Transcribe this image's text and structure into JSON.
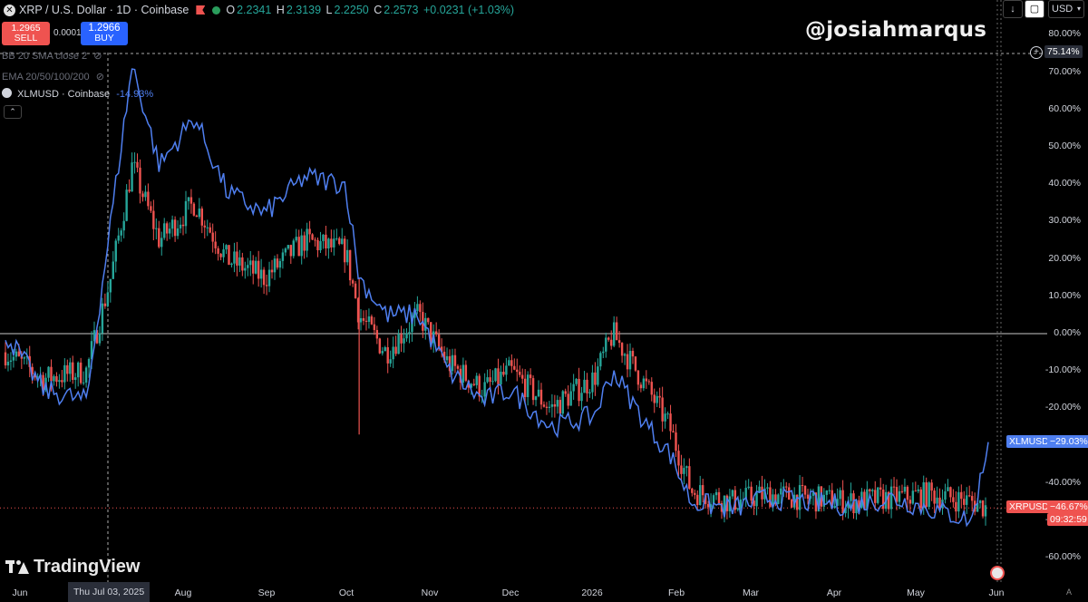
{
  "header": {
    "symbol": "XRP / U.S. Dollar · 1D · Coinbase",
    "o_key": "O",
    "o_val": "2.2341",
    "h_key": "H",
    "h_val": "2.3139",
    "l_key": "L",
    "l_val": "2.2250",
    "c_key": "C",
    "c_val": "2.2573",
    "change": "+0.0231 (+1.03%)"
  },
  "trade": {
    "sell_price": "1.2965",
    "sell_label": "SELL",
    "spread": "0.0001",
    "buy_price": "1.2966",
    "buy_label": "BUY"
  },
  "indicators": {
    "bb": "BB 20 SMA close 2",
    "ema": "EMA 20/50/100/200",
    "compare_symbol": "XLMUSD · Coinbase",
    "compare_value": "-14.93%"
  },
  "watermark": "@josiahmarqus",
  "currency": "USD",
  "brand": "TradingView",
  "crosshair": {
    "x_label": "Thu Jul 03, 2025",
    "y_label": "75.14%"
  },
  "price_tags": {
    "xlm_name": "XLMUSD",
    "xlm_value": "−29.03%",
    "xrp_name": "XRPUSD",
    "xrp_value": "−46.67%",
    "countdown": "09:32:59"
  },
  "colors": {
    "up": "#26a69a",
    "down": "#ef5350",
    "xlm_line": "#4f7ff0",
    "zero_line": "#c8c8c8",
    "background": "#000000"
  },
  "chart_data": {
    "type": "line",
    "title": "XRP / U.S. Dollar · 1D · Coinbase",
    "xlabel": "",
    "ylabel": "",
    "y_unit": "%",
    "ylim": [
      -60,
      80
    ],
    "y_ticks": [
      "80.00%",
      "70.00%",
      "60.00%",
      "50.00%",
      "40.00%",
      "30.00%",
      "20.00%",
      "10.00%",
      "0.00%",
      "-10.00%",
      "-20.00%",
      "-30.00%",
      "-40.00%",
      "-50.00%",
      "-60.00%"
    ],
    "x_ticks": [
      "Jun",
      "Aug",
      "Sep",
      "Oct",
      "Nov",
      "Dec",
      "2026",
      "Feb",
      "Mar",
      "Apr",
      "May",
      "Jun"
    ],
    "series": [
      {
        "name": "XRPUSD",
        "style": "candlestick",
        "x": [
          "2025-06-01",
          "2025-06-15",
          "2025-07-01",
          "2025-07-10",
          "2025-07-18",
          "2025-07-28",
          "2025-08-10",
          "2025-08-22",
          "2025-09-05",
          "2025-09-20",
          "2025-10-05",
          "2025-10-10",
          "2025-10-20",
          "2025-11-01",
          "2025-11-12",
          "2025-11-25",
          "2025-12-05",
          "2025-12-20",
          "2026-01-05",
          "2026-01-12",
          "2026-01-25",
          "2026-02-02",
          "2026-02-10",
          "2026-02-25",
          "2026-03-10",
          "2026-03-25",
          "2026-04-10",
          "2026-04-25",
          "2026-05-10",
          "2026-05-25",
          "2026-05-31"
        ],
        "values": [
          -5,
          -12,
          -10,
          15,
          45,
          25,
          35,
          20,
          15,
          25,
          22,
          5,
          -5,
          5,
          -8,
          -15,
          -10,
          -20,
          -12,
          0,
          -15,
          -25,
          -42,
          -45,
          -43,
          -44,
          -45,
          -44,
          -43,
          -45,
          -46.67
        ]
      },
      {
        "name": "XLMUSD",
        "style": "line",
        "x": [
          "2025-06-01",
          "2025-06-15",
          "2025-07-01",
          "2025-07-10",
          "2025-07-18",
          "2025-07-28",
          "2025-08-10",
          "2025-08-22",
          "2025-09-05",
          "2025-09-20",
          "2025-10-05",
          "2025-10-10",
          "2025-10-20",
          "2025-11-01",
          "2025-11-12",
          "2025-11-25",
          "2025-12-05",
          "2025-12-20",
          "2026-01-05",
          "2026-01-12",
          "2026-01-25",
          "2026-02-02",
          "2026-02-10",
          "2026-02-25",
          "2026-03-10",
          "2026-03-25",
          "2026-04-10",
          "2026-04-25",
          "2026-05-10",
          "2026-05-25",
          "2026-05-31"
        ],
        "values": [
          0,
          -15,
          -18,
          30,
          72,
          45,
          58,
          38,
          32,
          42,
          40,
          15,
          5,
          5,
          -10,
          -18,
          -15,
          -25,
          -22,
          -10,
          -25,
          -32,
          -45,
          -47,
          -44,
          -45,
          -46,
          -44,
          -47,
          -50,
          -29.03
        ]
      }
    ]
  }
}
